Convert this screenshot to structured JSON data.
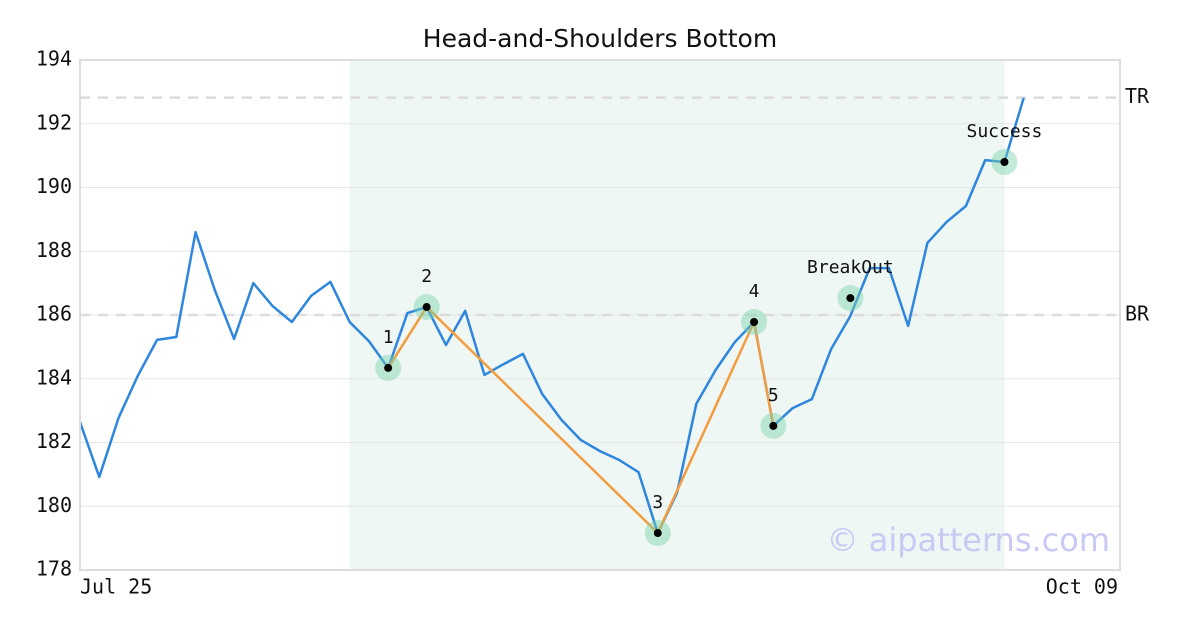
{
  "chart_data": {
    "type": "line",
    "title": "Head-and-Shoulders Bottom",
    "categories": [
      "Jul 25",
      null,
      null,
      null,
      null,
      null,
      null,
      null,
      null,
      null,
      null,
      null,
      null,
      null,
      null,
      null,
      null,
      null,
      null,
      null,
      null,
      null,
      null,
      null,
      null,
      null,
      null,
      null,
      null,
      null,
      null,
      null,
      null,
      null,
      null,
      null,
      null,
      null,
      null,
      null,
      null,
      null,
      null,
      null,
      null,
      null,
      null,
      null,
      null,
      null,
      null,
      null,
      null,
      null,
      "Oct 09"
    ],
    "series": [
      {
        "color": "#2e86de",
        "values": [
          182.64,
          180.92,
          182.77,
          184.09,
          185.22,
          185.31,
          188.6,
          186.78,
          185.25,
          187.0,
          186.28,
          185.78,
          186.6,
          187.04,
          185.78,
          185.18,
          184.34,
          186.06,
          186.25,
          185.06,
          186.13,
          184.12,
          184.46,
          184.78,
          183.52,
          182.71,
          182.08,
          181.73,
          181.45,
          181.07,
          179.16,
          180.42,
          183.21,
          184.27,
          185.15,
          185.78,
          182.52,
          183.08,
          183.36,
          184.93,
          185.97,
          187.47,
          187.47,
          185.66,
          188.26,
          188.92,
          189.42,
          190.86,
          190.8,
          192.81,
          null,
          null,
          null,
          null,
          null
        ]
      }
    ],
    "pattern_color": "#f39c3f",
    "pattern_points": [
      {
        "label": "1",
        "x": 16,
        "value": 184.34
      },
      {
        "label": "2",
        "x": 18,
        "value": 186.25
      },
      {
        "label": "3",
        "x": 30,
        "value": 179.16
      },
      {
        "label": "4",
        "x": 35,
        "value": 185.78
      },
      {
        "label": "5",
        "x": 36,
        "value": 182.52
      }
    ],
    "events": [
      {
        "label": "BreakOut",
        "x": 40,
        "value": 186.53
      },
      {
        "label": "Success",
        "x": 48,
        "value": 190.8
      }
    ],
    "levels": [
      {
        "label": "TR",
        "value": 192.82
      },
      {
        "label": "BR",
        "value": 186
      }
    ],
    "highlight": [
      14,
      48
    ],
    "highlight_color": "#eef7f3",
    "watermark": "© aipatterns.com",
    "ylim": [
      178,
      194
    ],
    "yticks": [
      178,
      180,
      182,
      184,
      186,
      188,
      190,
      192,
      194
    ],
    "grid": true
  }
}
